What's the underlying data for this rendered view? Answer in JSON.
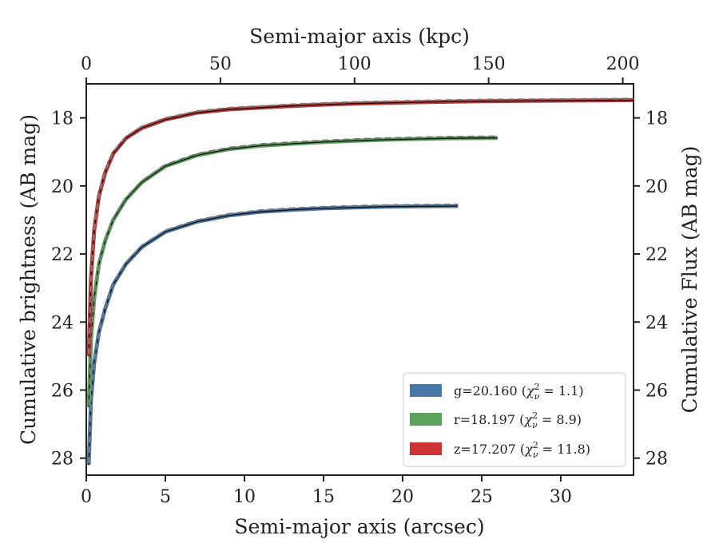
{
  "chart_data": {
    "type": "line",
    "xlabel": "Semi-major axis (arcsec)",
    "x2label": "Semi-major axis (kpc)",
    "ylabel": "Cumulative brightness (AB mag)",
    "y2label": "Cumulative Flux (AB mag)",
    "xlim": [
      0,
      34.6
    ],
    "x2lim": [
      0,
      204
    ],
    "ylim": [
      28.5,
      17.0
    ],
    "x_ticks": [
      0,
      5,
      10,
      15,
      20,
      25,
      30
    ],
    "x2_ticks": [
      0,
      50,
      100,
      150,
      200
    ],
    "y_ticks": [
      18,
      20,
      22,
      24,
      26,
      28
    ],
    "legend_position": "lower-right",
    "series": [
      {
        "name": "g=20.160 (χ²_ν = 1.1)",
        "legend_label": "g=20.160",
        "chi_label": "(χ²ν = 1.1)",
        "chi_value": "1.1",
        "color": "#4878a8",
        "x": [
          0.15,
          0.3,
          0.5,
          0.8,
          1.2,
          1.7,
          2.5,
          3.5,
          5,
          7,
          9,
          11,
          13,
          15,
          17,
          19,
          21,
          23.5
        ],
        "y": [
          28.2,
          26.3,
          25.2,
          24.3,
          23.6,
          22.9,
          22.3,
          21.8,
          21.35,
          21.05,
          20.87,
          20.76,
          20.7,
          20.66,
          20.63,
          20.61,
          20.6,
          20.59
        ]
      },
      {
        "name": "r=18.197 (χ²_ν = 8.9)",
        "legend_label": "r=18.197",
        "chi_label": "(χ²ν = 8.9)",
        "chi_value": "8.9",
        "color": "#5aa35a",
        "x": [
          0.15,
          0.3,
          0.5,
          0.8,
          1.2,
          1.7,
          2.5,
          3.5,
          5,
          7,
          9,
          11,
          13,
          15,
          17,
          19,
          21,
          23,
          26
        ],
        "y": [
          26.5,
          24.5,
          23.3,
          22.3,
          21.6,
          21.0,
          20.4,
          19.9,
          19.42,
          19.1,
          18.92,
          18.82,
          18.76,
          18.71,
          18.67,
          18.64,
          18.62,
          18.6,
          18.59
        ]
      },
      {
        "name": "z=17.207 (χ²_ν = 11.8)",
        "legend_label": "z=17.207",
        "chi_label": "(χ²ν = 11.8)",
        "chi_value": "11.8",
        "color": "#cc3333",
        "x": [
          0.15,
          0.3,
          0.5,
          0.8,
          1.2,
          1.7,
          2.5,
          3.5,
          5,
          7,
          9,
          11,
          13,
          15,
          17,
          19,
          22,
          25,
          28,
          31,
          34.6
        ],
        "y": [
          25.0,
          22.7,
          21.3,
          20.3,
          19.6,
          19.05,
          18.6,
          18.3,
          18.05,
          17.85,
          17.75,
          17.7,
          17.65,
          17.61,
          17.58,
          17.56,
          17.53,
          17.51,
          17.5,
          17.49,
          17.48
        ]
      }
    ]
  }
}
